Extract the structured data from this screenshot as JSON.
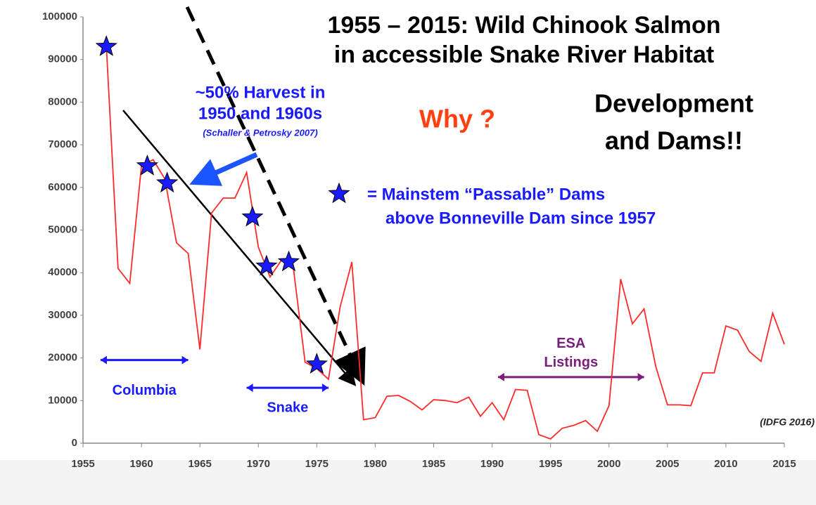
{
  "chart_data": {
    "type": "line",
    "title": [
      "1955 – 2015: Wild Chinook Salmon",
      "in accessible Snake River Habitat"
    ],
    "x": [
      1957,
      1958,
      1959,
      1960,
      1961,
      1962,
      1963,
      1964,
      1965,
      1966,
      1967,
      1968,
      1969,
      1970,
      1971,
      1972,
      1973,
      1974,
      1975,
      1976,
      1977,
      1978,
      1979,
      1980,
      1981,
      1982,
      1983,
      1984,
      1985,
      1986,
      1987,
      1988,
      1989,
      1990,
      1991,
      1992,
      1993,
      1994,
      1995,
      1996,
      1997,
      1998,
      1999,
      2000,
      2001,
      2002,
      2003,
      2004,
      2005,
      2006,
      2007,
      2008,
      2009,
      2010,
      2011,
      2012,
      2013,
      2014,
      2015
    ],
    "series": [
      {
        "color": "#ff2a2a",
        "values": [
          93000,
          41000,
          37500,
          65000,
          66500,
          62000,
          47000,
          44500,
          22000,
          54000,
          57500,
          57500,
          63500,
          46000,
          39000,
          43000,
          41000,
          19000,
          17500,
          15000,
          32000,
          42500,
          5500,
          6000,
          11000,
          11200,
          9800,
          7800,
          10200,
          10000,
          9500,
          10800,
          6300,
          9500,
          5500,
          12600,
          12400,
          2000,
          1000,
          3500,
          4200,
          5300,
          2800,
          8800,
          38500,
          28000,
          31500,
          18000,
          9000,
          9000,
          8800,
          16500,
          16500,
          27500,
          26500,
          21500,
          19200,
          30500,
          23200
        ]
      },
      {
        "type": "scatter",
        "color": "#1a1aff",
        "x": [
          1957,
          1960.5,
          1962.2,
          1969.5,
          1970.7,
          1972.6,
          1975
        ],
        "values": [
          93000,
          65000,
          61000,
          53000,
          41500,
          42500,
          18500
        ]
      }
    ],
    "legend_text": [
      "= Mainstem “Passable” Dams",
      "above Bonneville Dam since 1957"
    ],
    "annotations": {
      "harvest": [
        "~50% Harvest in",
        "1950 and 1960s"
      ],
      "citation": "(Schaller & Petrosky 2007)",
      "why": "Why ?",
      "development": [
        "Development",
        "and Dams!!"
      ],
      "source": "(IDFG 2016)"
    },
    "ranges": [
      {
        "label": [
          "Columbia"
        ],
        "x": [
          1956.5,
          1964
        ],
        "y": 19500,
        "color": "#1a1aff"
      },
      {
        "label": [
          "Snake"
        ],
        "x": [
          1969,
          1976
        ],
        "y": 13000,
        "color": "#1a1aff"
      },
      {
        "label": [
          "ESA",
          "Listings"
        ],
        "x": [
          1990.5,
          2003
        ],
        "y": 15500,
        "color": "#7b1d7b"
      }
    ],
    "xlim": [
      1955,
      2015
    ],
    "xticks": [
      1955,
      1960,
      1965,
      1970,
      1975,
      1980,
      1985,
      1990,
      1995,
      2000,
      2005,
      2010,
      2015
    ],
    "ylim": [
      0,
      100000
    ],
    "yticks": [
      0,
      10000,
      20000,
      30000,
      40000,
      50000,
      60000,
      70000,
      80000,
      90000,
      100000
    ]
  }
}
